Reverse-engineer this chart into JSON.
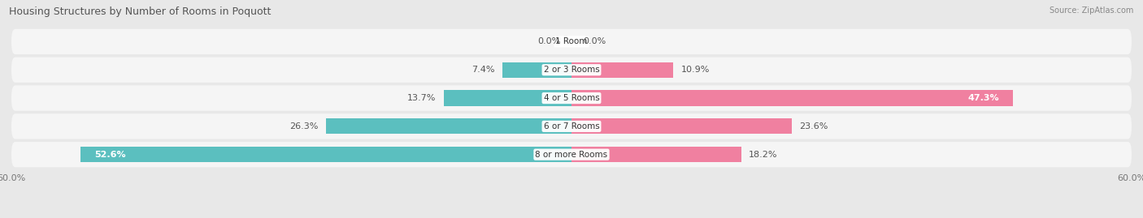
{
  "title": "Housing Structures by Number of Rooms in Poquott",
  "source": "Source: ZipAtlas.com",
  "categories": [
    "1 Room",
    "2 or 3 Rooms",
    "4 or 5 Rooms",
    "6 or 7 Rooms",
    "8 or more Rooms"
  ],
  "owner_values": [
    0.0,
    7.4,
    13.7,
    26.3,
    52.6
  ],
  "renter_values": [
    0.0,
    10.9,
    47.3,
    23.6,
    18.2
  ],
  "owner_color": "#5BBFBF",
  "renter_color": "#F080A0",
  "owner_color_light": "#90D8D8",
  "renter_color_light": "#F8B0C8",
  "xlim": 60.0,
  "background_color": "#e8e8e8",
  "row_bg_color": "#f5f5f5",
  "title_fontsize": 9,
  "source_fontsize": 7,
  "label_fontsize": 8,
  "category_fontsize": 7.5,
  "axis_label_fontsize": 8,
  "bar_height": 0.55
}
